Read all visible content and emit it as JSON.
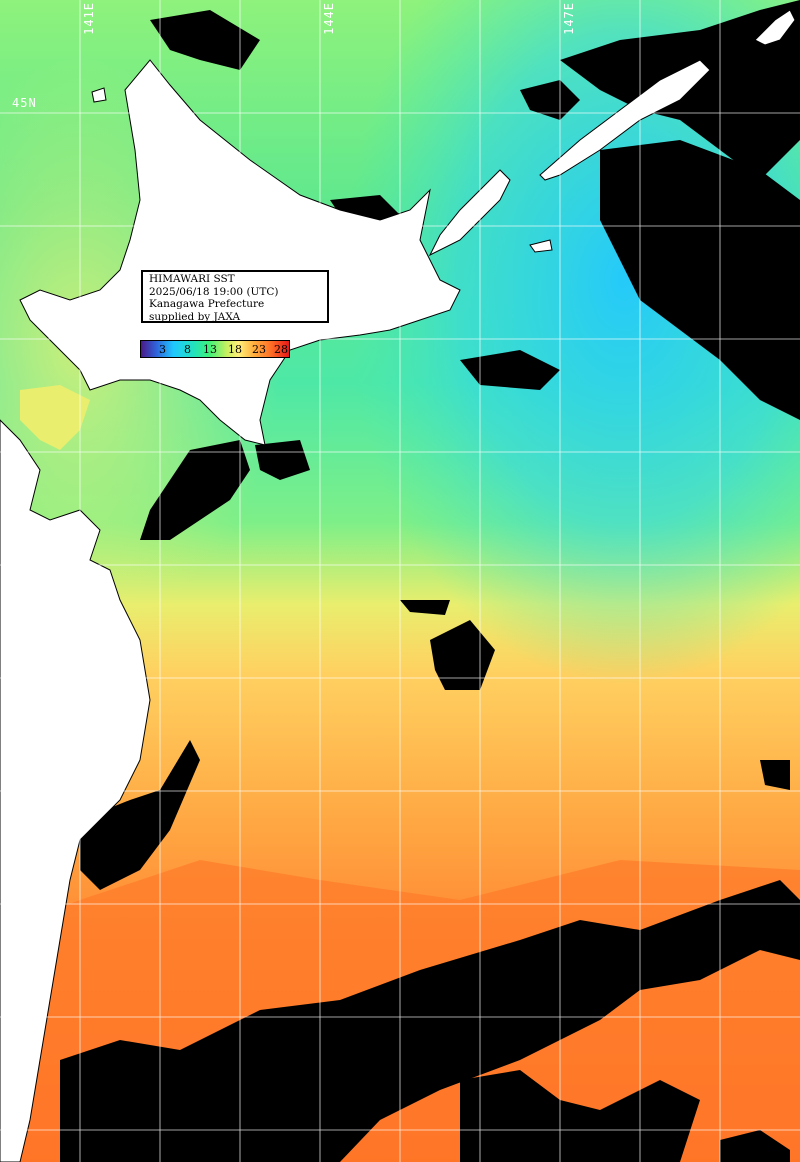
{
  "info": {
    "line1": "HIMAWARI SST",
    "line2": "2025/06/18 19:00 (UTC)",
    "line3": "Kanagawa Prefecture",
    "line4": "supplied by JAXA"
  },
  "legend": {
    "ticks": [
      "3",
      "8",
      "13",
      "18",
      "23",
      "28"
    ],
    "colors": [
      "#4a1a88",
      "#1fc8ff",
      "#3df07a",
      "#fff07a",
      "#ff7428",
      "#e81818"
    ]
  },
  "grid_labels": {
    "lat_45": "45N",
    "lon_141": "141E",
    "lon_144": "144E",
    "lon_147": "147E"
  },
  "colors": {
    "land": "#ffffff",
    "cloud": "#000000",
    "grid": "#ffffff"
  }
}
